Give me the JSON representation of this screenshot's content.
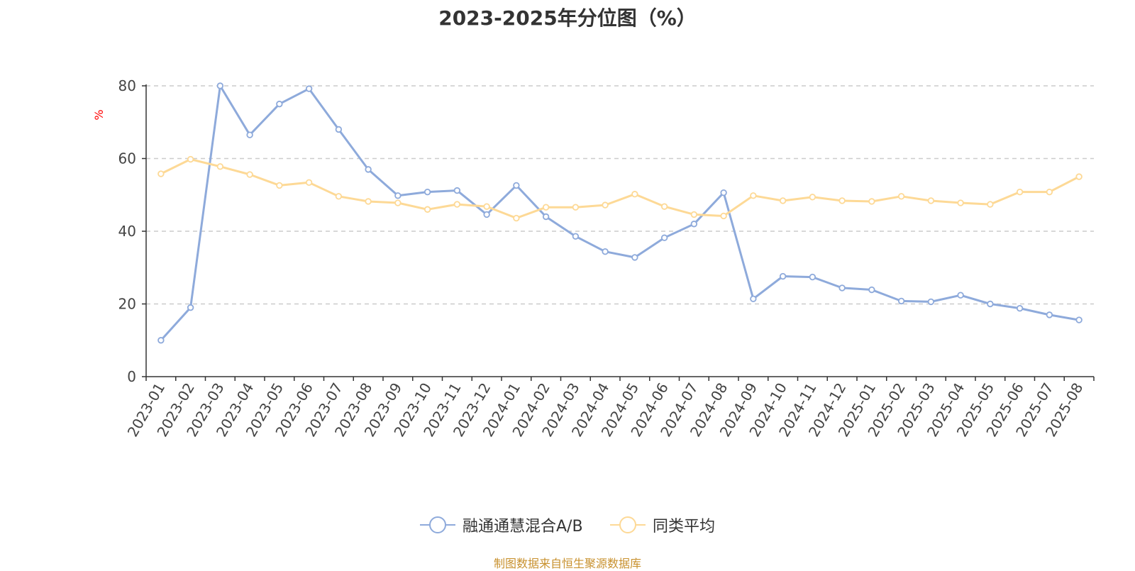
{
  "chart_data": {
    "type": "line",
    "title": "2023-2025年分位图（%）",
    "ylabel": "%",
    "xlabel": "",
    "ylim": [
      0,
      80
    ],
    "yticks": [
      0,
      20,
      40,
      60,
      80
    ],
    "grid": true,
    "legend_position": "bottom",
    "categories": [
      "2023-01",
      "2023-02",
      "2023-03",
      "2023-04",
      "2023-05",
      "2023-06",
      "2023-07",
      "2023-08",
      "2023-09",
      "2023-10",
      "2023-11",
      "2023-12",
      "2024-01",
      "2024-02",
      "2024-03",
      "2024-04",
      "2024-05",
      "2024-06",
      "2024-07",
      "2024-08",
      "2024-09",
      "2024-10",
      "2024-11",
      "2024-12",
      "2025-01",
      "2025-02",
      "2025-03",
      "2025-04",
      "2025-05",
      "2025-06",
      "2025-07",
      "2025-08"
    ],
    "series": [
      {
        "name": "融通通慧混合A/B",
        "color": "#8eaadb",
        "values": [
          10.0,
          19.0,
          80.0,
          66.5,
          75.0,
          79.2,
          68.0,
          57.0,
          49.8,
          50.8,
          51.2,
          44.6,
          52.6,
          44.0,
          38.6,
          34.4,
          32.8,
          38.2,
          42.0,
          50.6,
          21.4,
          27.6,
          27.4,
          24.4,
          23.9,
          20.8,
          20.6,
          22.4,
          20.0,
          18.8,
          17.0,
          15.6
        ]
      },
      {
        "name": "同类平均",
        "color": "#fdd996",
        "values": [
          55.8,
          59.8,
          57.8,
          55.6,
          52.6,
          53.4,
          49.6,
          48.2,
          47.8,
          46.0,
          47.4,
          46.8,
          43.6,
          46.6,
          46.6,
          47.2,
          50.2,
          46.8,
          44.6,
          44.2,
          49.8,
          48.4,
          49.4,
          48.4,
          48.2,
          49.6,
          48.4,
          47.8,
          47.4,
          50.8,
          50.8,
          55.0
        ]
      }
    ]
  },
  "source_note": "制图数据来自恒生聚源数据库",
  "colors": {
    "source_note": "#c8912e",
    "ylabel": "#ff0000",
    "grid": "#cccccc",
    "axis": "#333333"
  }
}
